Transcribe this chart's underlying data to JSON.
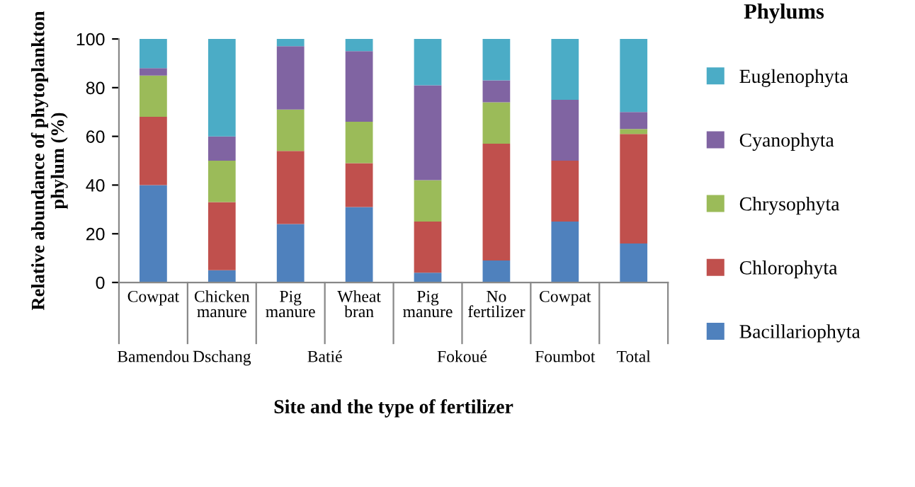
{
  "chart_data": {
    "type": "bar",
    "stacked": true,
    "xlabel": "Site and the type of fertilizer",
    "ylabel": "Relative abundance of phytoplankton phylum (%)",
    "legend_title": "Phylums",
    "legend": "right",
    "categories": [
      "Cowpat",
      "Chicken manure",
      "Pig manure",
      "Wheat bran",
      "Pig manure",
      "No fertilizer",
      "Cowpat",
      null
    ],
    "annotations": [
      "Bamendou",
      "Dschang",
      "Batié",
      "Fokoué",
      "Foumbot",
      "Total"
    ],
    "ylim": [
      0,
      100
    ],
    "yticks": [
      0,
      20,
      40,
      60,
      80,
      100
    ],
    "series": [
      {
        "name": "Bacillariophyta",
        "color": "#4f81bd",
        "values": [
          40,
          5,
          24,
          31,
          4,
          9,
          25,
          16
        ]
      },
      {
        "name": "Chlorophyta",
        "color": "#c0504d",
        "values": [
          28,
          28,
          30,
          18,
          21,
          48,
          25,
          45
        ]
      },
      {
        "name": "Chrysophyta",
        "color": "#9bbb59",
        "values": [
          17,
          17,
          17,
          17,
          17,
          17,
          0,
          2
        ]
      },
      {
        "name": "Cyanophyta",
        "color": "#8064a2",
        "values": [
          3,
          10,
          26,
          29,
          39,
          9,
          25,
          7
        ]
      },
      {
        "name": "Euglenophyta",
        "color": "#4bacc6",
        "values": [
          12,
          40,
          3,
          5,
          19,
          17,
          25,
          30
        ]
      }
    ]
  }
}
